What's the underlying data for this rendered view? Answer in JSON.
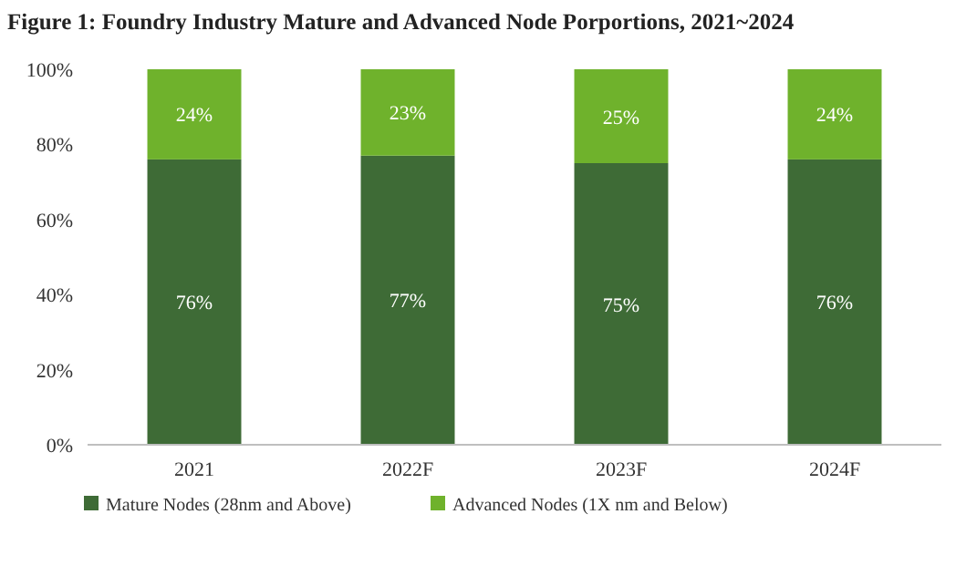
{
  "chart_data": {
    "type": "bar",
    "title": "Figure 1: Foundry Industry Mature and Advanced Node Porportions, 2021~2024",
    "categories": [
      "2021",
      "2022F",
      "2023F",
      "2024F"
    ],
    "stacked": true,
    "series": [
      {
        "name": "Mature Nodes (28nm and Above)",
        "color": "#3e6b36",
        "values": [
          76,
          77,
          75,
          76
        ],
        "value_labels": [
          "76%",
          "77%",
          "75%",
          "76%"
        ]
      },
      {
        "name": "Advanced Nodes (1X nm and Below)",
        "color": "#6fb22c",
        "values": [
          24,
          23,
          25,
          24
        ],
        "value_labels": [
          "24%",
          "23%",
          "25%",
          "24%"
        ]
      }
    ],
    "ylim": [
      0,
      100
    ],
    "yticks": [
      {
        "value": 0,
        "label": "0%"
      },
      {
        "value": 20,
        "label": "20%"
      },
      {
        "value": 40,
        "label": "40%"
      },
      {
        "value": 60,
        "label": "60%"
      },
      {
        "value": 80,
        "label": "80%"
      },
      {
        "value": 100,
        "label": "100%"
      }
    ],
    "legend": "bottom"
  }
}
